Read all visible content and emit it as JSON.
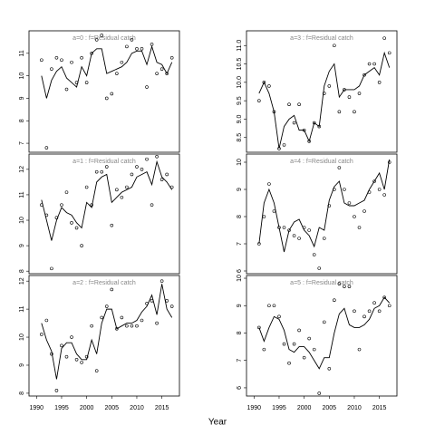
{
  "xlabel": "Year",
  "chart_data": [
    {
      "type": "line",
      "title": "a=0 : f=Residual catch",
      "x": [
        1991,
        1992,
        1993,
        1994,
        1995,
        1996,
        1997,
        1998,
        1999,
        2000,
        2001,
        2002,
        2003,
        2004,
        2005,
        2006,
        2007,
        2008,
        2009,
        2010,
        2011,
        2012,
        2013,
        2014,
        2015,
        2016,
        2017
      ],
      "series": [
        {
          "style": "line",
          "color": "#000000",
          "values": [
            10.0,
            9.0,
            9.8,
            10.2,
            10.4,
            9.9,
            9.7,
            9.5,
            10.4,
            10.0,
            11.0,
            11.2,
            11.2,
            10.1,
            10.2,
            10.3,
            10.4,
            10.6,
            11.0,
            11.1,
            11.1,
            10.5,
            11.3,
            10.6,
            10.5,
            10.1,
            10.6
          ]
        },
        {
          "style": "points",
          "color": "#000000",
          "values": [
            10.7,
            6.8,
            10.3,
            10.8,
            10.7,
            9.4,
            10.6,
            9.7,
            10.8,
            9.7,
            11.0,
            11.6,
            11.8,
            9.0,
            9.2,
            10.1,
            10.6,
            11.3,
            11.6,
            11.2,
            11.2,
            9.5,
            11.4,
            10.1,
            10.3,
            10.1,
            10.8
          ]
        }
      ],
      "xlim": [
        1988.5,
        2018.5
      ],
      "xticks": [
        1990,
        1995,
        2000,
        2005,
        2010,
        2015
      ],
      "ylim": [
        6.6,
        12.0
      ],
      "yticks": [
        7,
        8,
        9,
        10,
        11
      ]
    },
    {
      "type": "line",
      "title": "a=3 : f=Residual catch",
      "x": [
        1991,
        1992,
        1993,
        1994,
        1995,
        1996,
        1997,
        1998,
        1999,
        2000,
        2001,
        2002,
        2003,
        2004,
        2005,
        2006,
        2007,
        2008,
        2009,
        2010,
        2011,
        2012,
        2013,
        2014,
        2015,
        2016,
        2017
      ],
      "series": [
        {
          "style": "line",
          "color": "#000000",
          "values": [
            9.7,
            10.0,
            9.7,
            9.2,
            8.2,
            8.8,
            9.0,
            9.1,
            8.7,
            8.7,
            8.4,
            8.9,
            8.8,
            9.9,
            10.3,
            10.5,
            9.6,
            9.8,
            9.8,
            9.8,
            9.9,
            10.2,
            10.3,
            10.4,
            10.2,
            10.8,
            10.4
          ]
        },
        {
          "style": "points",
          "color": "#000000",
          "values": [
            9.5,
            10.0,
            9.9,
            9.2,
            8.2,
            8.3,
            9.4,
            8.9,
            9.4,
            8.7,
            8.4,
            8.9,
            8.8,
            9.7,
            9.9,
            11.0,
            9.2,
            9.8,
            9.6,
            9.2,
            9.7,
            10.2,
            10.5,
            10.5,
            10.0,
            11.2,
            10.8
          ]
        }
      ],
      "xlim": [
        1988.5,
        2018.5
      ],
      "xticks": [
        1990,
        1995,
        2000,
        2005,
        2010,
        2015
      ],
      "ylim": [
        8.1,
        11.4
      ],
      "yticks": [
        8.5,
        {
          "value": 9,
          "label": "9.0"
        },
        9.5,
        {
          "value": 10,
          "label": "10.0"
        },
        10.5,
        {
          "value": 11,
          "label": "11.0"
        }
      ]
    },
    {
      "type": "line",
      "title": "a=1 : f=Residual catch",
      "x": [
        1991,
        1992,
        1993,
        1994,
        1995,
        1996,
        1997,
        1998,
        1999,
        2000,
        2001,
        2002,
        2003,
        2004,
        2005,
        2006,
        2007,
        2008,
        2009,
        2010,
        2011,
        2012,
        2013,
        2014,
        2015,
        2016,
        2017
      ],
      "series": [
        {
          "style": "line",
          "color": "#000000",
          "values": [
            10.8,
            10.0,
            9.2,
            10.0,
            10.5,
            10.3,
            10.2,
            9.9,
            9.7,
            10.7,
            10.5,
            11.5,
            11.7,
            11.8,
            10.7,
            10.9,
            11.1,
            11.2,
            11.3,
            11.7,
            11.8,
            11.9,
            11.4,
            12.3,
            11.7,
            11.5,
            11.2
          ]
        },
        {
          "style": "points",
          "color": "#000000",
          "values": [
            10.6,
            10.2,
            8.1,
            10.1,
            10.6,
            11.1,
            9.9,
            9.7,
            9.0,
            11.3,
            10.6,
            11.9,
            11.9,
            12.1,
            9.8,
            11.2,
            10.9,
            11.3,
            11.8,
            12.1,
            12.0,
            12.4,
            10.6,
            12.5,
            11.6,
            11.8,
            11.3
          ]
        }
      ],
      "xlim": [
        1988.5,
        2018.5
      ],
      "xticks": [
        1990,
        1995,
        2000,
        2005,
        2010,
        2015
      ],
      "ylim": [
        7.9,
        12.6
      ],
      "yticks": [
        8,
        9,
        10,
        11,
        12
      ]
    },
    {
      "type": "line",
      "title": "a=4 : f=Residual catch",
      "x": [
        1991,
        1992,
        1993,
        1994,
        1995,
        1996,
        1997,
        1998,
        1999,
        2000,
        2001,
        2002,
        2003,
        2004,
        2005,
        2006,
        2007,
        2008,
        2009,
        2010,
        2011,
        2012,
        2013,
        2014,
        2015,
        2016,
        2017
      ],
      "series": [
        {
          "style": "line",
          "color": "#000000",
          "values": [
            7.0,
            8.5,
            9.0,
            8.5,
            7.6,
            6.7,
            7.5,
            7.8,
            7.9,
            7.5,
            7.3,
            6.9,
            7.6,
            7.5,
            8.6,
            9.1,
            9.3,
            8.5,
            8.4,
            8.4,
            8.5,
            8.6,
            9.0,
            9.3,
            9.6,
            9.0,
            10.1
          ]
        },
        {
          "style": "points",
          "color": "#000000",
          "values": [
            7.0,
            8.0,
            9.2,
            8.2,
            7.6,
            7.6,
            7.5,
            7.3,
            7.2,
            7.6,
            7.5,
            6.6,
            6.1,
            7.2,
            8.4,
            9.0,
            9.8,
            9.0,
            8.5,
            8.0,
            7.6,
            8.2,
            8.9,
            9.3,
            9.0,
            8.8,
            10.0
          ]
        }
      ],
      "xlim": [
        1988.5,
        2018.5
      ],
      "xticks": [
        1990,
        1995,
        2000,
        2005,
        2010,
        2015
      ],
      "ylim": [
        5.9,
        10.3
      ],
      "yticks": [
        6,
        7,
        8,
        9,
        10
      ]
    },
    {
      "type": "line",
      "title": "a=2 : f=Residual catch",
      "x": [
        1991,
        1992,
        1993,
        1994,
        1995,
        1996,
        1997,
        1998,
        1999,
        2000,
        2001,
        2002,
        2003,
        2004,
        2005,
        2006,
        2007,
        2008,
        2009,
        2010,
        2011,
        2012,
        2013,
        2014,
        2015,
        2016,
        2017
      ],
      "series": [
        {
          "style": "line",
          "color": "#000000",
          "values": [
            10.5,
            9.9,
            9.5,
            8.5,
            9.6,
            9.8,
            9.8,
            9.4,
            9.2,
            9.2,
            9.9,
            9.4,
            10.5,
            11.0,
            11.0,
            10.3,
            10.4,
            10.5,
            10.5,
            10.6,
            10.9,
            11.1,
            11.5,
            10.8,
            11.9,
            11.0,
            10.7
          ]
        },
        {
          "style": "points",
          "color": "#000000",
          "values": [
            10.1,
            10.6,
            9.4,
            8.1,
            9.7,
            9.3,
            10.0,
            9.2,
            9.1,
            9.3,
            10.4,
            8.8,
            10.7,
            11.1,
            11.7,
            10.3,
            10.7,
            10.4,
            10.4,
            10.4,
            10.6,
            11.2,
            11.3,
            10.5,
            12.0,
            11.3,
            11.1
          ]
        }
      ],
      "xlim": [
        1988.5,
        2018.5
      ],
      "xticks": [
        1990,
        1995,
        2000,
        2005,
        2010,
        2015
      ],
      "ylim": [
        7.9,
        12.2
      ],
      "yticks": [
        8,
        9,
        10,
        11,
        12
      ]
    },
    {
      "type": "line",
      "title": "a=5 : f=Residual catch",
      "x": [
        1991,
        1992,
        1993,
        1994,
        1995,
        1996,
        1997,
        1998,
        1999,
        2000,
        2001,
        2002,
        2003,
        2004,
        2005,
        2006,
        2007,
        2008,
        2009,
        2010,
        2011,
        2012,
        2013,
        2014,
        2015,
        2016,
        2017
      ],
      "series": [
        {
          "style": "line",
          "color": "#000000",
          "values": [
            8.2,
            7.7,
            8.2,
            8.6,
            8.5,
            8.1,
            7.4,
            7.3,
            7.5,
            7.5,
            7.3,
            7.0,
            6.7,
            7.1,
            7.1,
            8.0,
            8.7,
            8.9,
            8.3,
            8.2,
            8.2,
            8.3,
            8.5,
            8.9,
            9.0,
            9.3,
            9.1
          ]
        },
        {
          "style": "points",
          "color": "#000000",
          "values": [
            8.2,
            7.4,
            9.0,
            9.0,
            8.6,
            7.6,
            6.9,
            7.6,
            8.1,
            7.1,
            7.8,
            7.4,
            5.8,
            8.4,
            6.7,
            9.2,
            9.8,
            9.7,
            9.7,
            8.8,
            7.4,
            8.6,
            8.8,
            9.1,
            8.8,
            9.3,
            9.0
          ]
        }
      ],
      "xlim": [
        1988.5,
        2018.5
      ],
      "xticks": [
        1990,
        1995,
        2000,
        2005,
        2010,
        2015
      ],
      "ylim": [
        5.7,
        10.1
      ],
      "yticks": [
        6,
        7,
        8,
        9,
        10
      ]
    }
  ]
}
